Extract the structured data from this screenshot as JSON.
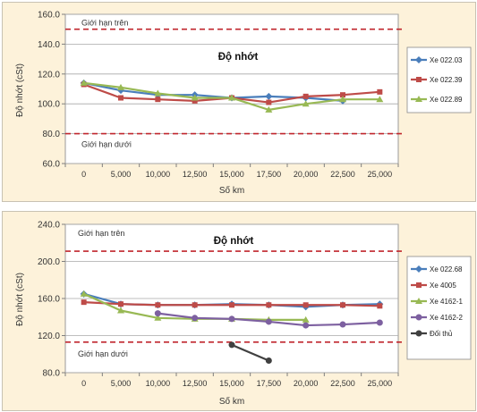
{
  "chart_data": [
    {
      "type": "line",
      "title": "Độ nhớt",
      "xlabel": "Số km",
      "ylabel": "Độ nhớt  (cSt)",
      "categories": [
        "0",
        "5,000",
        "10,000",
        "12,500",
        "15,000",
        "17,500",
        "20,000",
        "22,500",
        "25,000"
      ],
      "y_ticks": [
        "60.0",
        "80.0",
        "100.0",
        "120.0",
        "140.0",
        "160.0"
      ],
      "ylim": [
        60,
        160
      ],
      "grid": true,
      "legend_position": "right",
      "limits": [
        {
          "label": "Giới hạn trên",
          "value": 150
        },
        {
          "label": "Giới hạn dưới",
          "value": 80
        }
      ],
      "series": [
        {
          "name": "Xe 022.03",
          "color": "#4a7ebb",
          "marker": "diamond",
          "values": [
            114,
            109,
            106,
            106,
            104,
            105,
            104,
            102,
            null
          ]
        },
        {
          "name": "Xe 022.39",
          "color": "#be4b48",
          "marker": "square",
          "values": [
            113,
            104,
            103,
            102,
            104,
            101,
            105,
            106,
            108
          ]
        },
        {
          "name": "Xe 022.89",
          "color": "#98b954",
          "marker": "triangle",
          "values": [
            114,
            111,
            107,
            104,
            104,
            96,
            100,
            103,
            103
          ]
        }
      ]
    },
    {
      "type": "line",
      "title": "Độ nhớt",
      "xlabel": "Số km",
      "ylabel": "Độ nhớt    (cSt)",
      "categories": [
        "0",
        "5,000",
        "10,000",
        "12,500",
        "15,000",
        "17,500",
        "20,000",
        "22,500",
        "25,000"
      ],
      "y_ticks": [
        "80.0",
        "120.0",
        "160.0",
        "200.0",
        "240.0"
      ],
      "ylim": [
        80,
        240
      ],
      "grid": true,
      "legend_position": "right",
      "limits": [
        {
          "label": "Giới hạn trên",
          "value": 211
        },
        {
          "label": "Giới hạn dưới",
          "value": 113
        }
      ],
      "series": [
        {
          "name": "Xe 022.68",
          "color": "#4a7ebb",
          "marker": "diamond",
          "values": [
            165,
            154,
            153,
            153,
            154,
            153,
            151,
            153,
            154
          ]
        },
        {
          "name": "Xe 4005",
          "color": "#be4b48",
          "marker": "square",
          "values": [
            156,
            154,
            153,
            153,
            153,
            153,
            153,
            153,
            152
          ]
        },
        {
          "name": "Xe 4162-1",
          "color": "#98b954",
          "marker": "triangle",
          "values": [
            165,
            147,
            139,
            138,
            138,
            137,
            137,
            null,
            null
          ]
        },
        {
          "name": "Xe 4162-2",
          "color": "#7d60a0",
          "marker": "circle",
          "values": [
            null,
            null,
            144,
            139,
            138,
            135,
            131,
            132,
            134
          ]
        },
        {
          "name": "Đối thủ",
          "color": "#404040",
          "marker": "circle",
          "values": [
            null,
            null,
            null,
            null,
            110,
            93,
            null,
            null,
            null
          ]
        }
      ]
    }
  ]
}
